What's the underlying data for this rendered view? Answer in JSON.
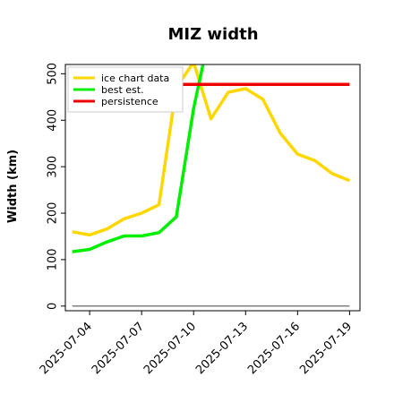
{
  "chart_data": {
    "type": "line",
    "title": "MIZ width",
    "ylabel": "Width (km)",
    "xlabel": "",
    "ylim": [
      -10,
      520
    ],
    "xlim": [
      "2025-07-02",
      "2025-07-19"
    ],
    "x_ticks": [
      "2025-07-04",
      "2025-07-07",
      "2025-07-10",
      "2025-07-13",
      "2025-07-16",
      "2025-07-19"
    ],
    "y_ticks": [
      0,
      100,
      200,
      300,
      400,
      500
    ],
    "grid": false,
    "legend_position": "top-left",
    "series": [
      {
        "name": "ice chart data",
        "color": "#ffd700",
        "x": [
          "2025-07-03",
          "2025-07-04",
          "2025-07-05",
          "2025-07-06",
          "2025-07-07",
          "2025-07-08",
          "2025-07-09",
          "2025-07-10",
          "2025-07-11",
          "2025-07-12",
          "2025-07-13",
          "2025-07-14",
          "2025-07-15",
          "2025-07-16",
          "2025-07-17",
          "2025-07-18",
          "2025-07-19"
        ],
        "y": [
          160,
          153,
          166,
          188,
          200,
          218,
          470,
          525,
          403,
          460,
          468,
          445,
          372,
          327,
          313,
          285,
          270
        ]
      },
      {
        "name": "best est.",
        "color": "#00ee00",
        "x": [
          "2025-07-03",
          "2025-07-04",
          "2025-07-05",
          "2025-07-06",
          "2025-07-07",
          "2025-07-08",
          "2025-07-09",
          "2025-07-10",
          "2025-07-11"
        ],
        "y": [
          117,
          122,
          138,
          151,
          151,
          158,
          192,
          425,
          600
        ]
      },
      {
        "name": "persistence",
        "color": "#ee0000",
        "x": [
          "2025-07-09",
          "2025-07-19"
        ],
        "y": [
          477,
          477
        ]
      },
      {
        "name": "",
        "color": "#808080",
        "x": [
          "2025-07-03",
          "2025-07-19"
        ],
        "y": [
          0,
          0
        ]
      }
    ]
  }
}
